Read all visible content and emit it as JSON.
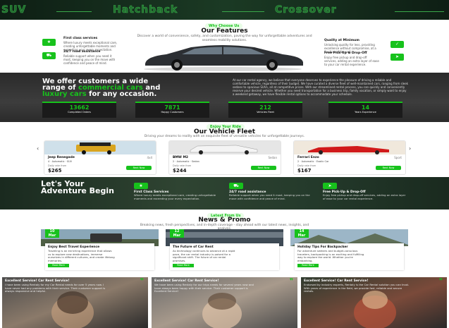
{
  "top_band": {
    "categories": [
      "SUV",
      "Hatchback",
      "Crossover"
    ]
  },
  "features": {
    "tag": "Why Choose Us",
    "title": "Our Features",
    "subtitle": "Discover a world of convenience, safety, and customization, paving the way for unforgettable adventures and seamless mobility solutions.",
    "items": [
      {
        "title": "First class services",
        "desc": "Where luxury meets exceptional care, creating unforgettable moments and exceeding your every expectation.",
        "icon": "trophy-icon"
      },
      {
        "title": "24/7 road assistance",
        "desc": "Reliable support when you need it most, keeping you on the move with confidence and peace of mind.",
        "icon": "road-icon"
      },
      {
        "title": "Quality at Minimum",
        "desc": "Unlocking quality for less, providing excellence without compromise, at a fraction of the cost.",
        "icon": "tag-icon"
      },
      {
        "title": "Free Pick-Up & Drop-Off",
        "desc": "Enjoy free pickup and drop-off services, adding an extra layer of ease to your car rental experience.",
        "icon": "pin-icon"
      }
    ]
  },
  "stats": {
    "headline_a": "We offer customers a wide",
    "headline_b": "range of",
    "headline_hl": "commercial cars",
    "headline_c": "and",
    "headline_hl2": "luxury cars",
    "headline_d": "for any occasion.",
    "paragraph": "At our car rental agency, we believe that everyone deserves to experience the pleasure of driving a reliable and comfortable vehicle, regardless of their budget. We have curated a diverse fleet of well-maintained cars, ranging from sleek sedans to spacious SUVs, all at competitive prices. With our streamlined rental process, you can quickly and conveniently reserve your desired vehicle. Whether you need transportation for a business trip, family vacation, or simply want to enjoy a weekend getaway, we have flexible rental options to accommodate your schedule.",
    "items": [
      {
        "number": "13662",
        "label": "Completed Orders"
      },
      {
        "number": "7871",
        "label": "Happy Customers"
      },
      {
        "number": "212",
        "label": "Vehicles Fleet"
      },
      {
        "number": "14",
        "label": "Years Experience"
      }
    ]
  },
  "fleet": {
    "tag": "Enjoy Your Ride",
    "title": "Our Vehicle Fleet",
    "subtitle": "Driving your dreams to reality with an exquisite fleet of versatile vehicles for unforgettable journeys.",
    "cards": [
      {
        "name": "Jeep Renegade",
        "type": "4x4",
        "specs": "4  ·  Automatic  ·  SUV",
        "from": "Daily rate from",
        "price": "$265",
        "book": "Rent Now"
      },
      {
        "name": "BMW M2",
        "type": "Sedan",
        "specs": "2  ·  Automatic  ·  Sedan",
        "from": "Daily rate from",
        "price": "$244",
        "book": "Rent Now"
      },
      {
        "name": "Ferrari Enzo",
        "type": "Sport",
        "specs": "2  ·  Automatic  ·  Exotic Car",
        "from": "Daily rate from",
        "price": "$167",
        "book": "Rent Now"
      }
    ],
    "prev": "‹",
    "next": "›"
  },
  "adventure": {
    "headline": "Let's Your Adventure Begin",
    "items": [
      {
        "title": "First Class Services",
        "desc": "Where luxury meets exceptional care, creating unforgettable moments and exceeding your every expectation.",
        "icon": "trophy-icon"
      },
      {
        "title": "24/7 road assistance",
        "desc": "Reliable support when you need it most, keeping you on the move with confidence and peace of mind.",
        "icon": "road-icon"
      },
      {
        "title": "Free Pick-Up & Drop-Off",
        "desc": "Enjoy free pickup and drop-off services, adding an extra layer of ease to your car rental experience.",
        "icon": "pin-icon"
      }
    ]
  },
  "news": {
    "tag": "Latest From Us",
    "title": "News & Promo",
    "subtitle": "Breaking news, fresh perspectives, and in-depth coverage - stay ahead with our latest news, insights, and analysis.",
    "cards": [
      {
        "day": "10",
        "month": "Mar",
        "title": "Enjoy Best Travel Experience",
        "desc": "Traveling is an enriching experience that allows us to explore new destinations, immerse ourselves in different cultures, and create lifelong memories.",
        "button": "Read More"
      },
      {
        "day": "12",
        "month": "Mar",
        "title": "The Future of Car Rent",
        "desc": "As technology continues to advance at a rapid pace, the car rental industry is poised for a significant shift. The future of car rental promises.",
        "button": "Read More"
      },
      {
        "day": "14",
        "month": "Mar",
        "title": "Holiday Tips For Backpacker",
        "desc": "For adventure seekers and budget-conscious travelers, backpacking is an exciting and fulfilling way to explore the world. Whether you're embarking.",
        "button": "Read More"
      }
    ]
  },
  "testimonials": [
    {
      "title": "Excellent Service! Car Rent Service!",
      "quote": "I have been using Rentaly for my Car Rental needs for over 5 years now. I have never had any problems with their service. Their customer support is always responsive and helpful."
    },
    {
      "title": "Excellent Service! Car Rent Service!",
      "quote": "We have been using Rentaly for our trips needs for several years now and have always been happy with their service. Their customer support is Excellent Service!"
    },
    {
      "title": "Excellent Service! Car Rent Service!",
      "quote": "Endorsed by industry experts, Rentaly is the Car Rental solution you can trust. With years of experience in the field, we provide fast, reliable and secure rentals."
    }
  ],
  "colors": {
    "accent": "#17c21c",
    "dark": "#1b1b1b"
  }
}
